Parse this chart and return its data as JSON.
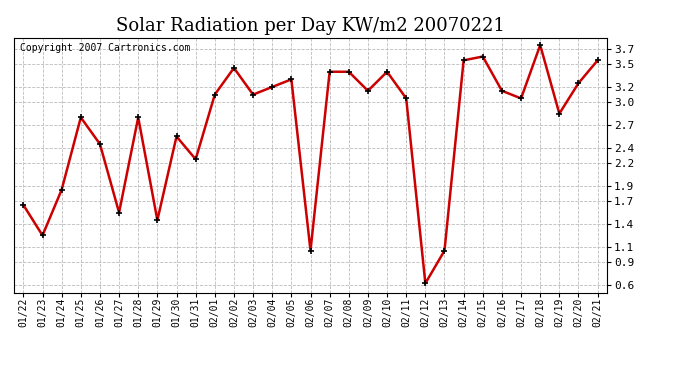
{
  "title": "Solar Radiation per Day KW/m2 20070221",
  "copyright": "Copyright 2007 Cartronics.com",
  "dates": [
    "01/22",
    "01/23",
    "01/24",
    "01/25",
    "01/26",
    "01/27",
    "01/28",
    "01/29",
    "01/30",
    "01/31",
    "02/01",
    "02/02",
    "02/03",
    "02/04",
    "02/05",
    "02/06",
    "02/07",
    "02/08",
    "02/09",
    "02/10",
    "02/11",
    "02/12",
    "02/13",
    "02/14",
    "02/15",
    "02/16",
    "02/17",
    "02/18",
    "02/19",
    "02/20",
    "02/21"
  ],
  "values": [
    1.65,
    1.25,
    1.85,
    2.8,
    2.45,
    1.55,
    2.8,
    1.45,
    2.55,
    2.25,
    3.1,
    3.45,
    3.1,
    3.2,
    3.3,
    1.05,
    3.4,
    3.4,
    3.15,
    3.4,
    3.05,
    0.62,
    1.05,
    3.55,
    3.6,
    3.15,
    3.05,
    3.75,
    2.85,
    3.25,
    3.55
  ],
  "line_color": "#cc0000",
  "marker": "+",
  "marker_size": 5,
  "marker_color": "#000000",
  "bg_color": "#ffffff",
  "grid_color": "#bbbbbb",
  "ylim": [
    0.5,
    3.85
  ],
  "yticks": [
    0.6,
    0.9,
    1.1,
    1.4,
    1.7,
    1.9,
    2.2,
    2.4,
    2.7,
    3.0,
    3.2,
    3.5,
    3.7
  ],
  "title_fontsize": 13,
  "tick_fontsize": 7,
  "copyright_fontsize": 7,
  "line_width": 1.8
}
